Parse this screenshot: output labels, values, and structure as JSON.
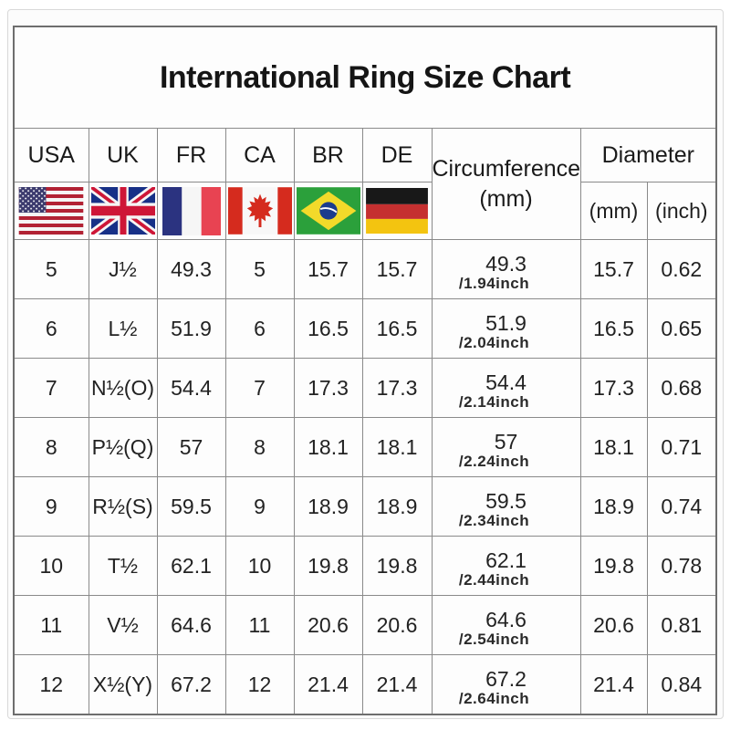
{
  "title": "International Ring Size Chart",
  "colors": {
    "page_background": "#fcfcfc",
    "grid_line": "#8a8a8a",
    "outer_border": "#6e6e6e",
    "text": "#1f1f1f"
  },
  "table": {
    "columns": [
      {
        "code": "USA",
        "flag_icon": "usa-flag-icon"
      },
      {
        "code": "UK",
        "flag_icon": "uk-flag-icon"
      },
      {
        "code": "FR",
        "flag_icon": "france-flag-icon"
      },
      {
        "code": "CA",
        "flag_icon": "canada-flag-icon"
      },
      {
        "code": "BR",
        "flag_icon": "brazil-flag-icon"
      },
      {
        "code": "DE",
        "flag_icon": "germany-flag-icon"
      }
    ],
    "circumference": {
      "label": "Circumference",
      "unit": "(mm)"
    },
    "diameter": {
      "label": "Diameter",
      "mm_label": "(mm)",
      "inch_label": "(inch)"
    },
    "rows": [
      {
        "usa": "5",
        "uk": "J½",
        "fr": "49.3",
        "ca": "5",
        "br": "15.7",
        "de": "15.7",
        "circumference_mm": "49.3",
        "circumference_inch": "/1.94inch",
        "diameter_mm": "15.7",
        "diameter_inch": "0.62"
      },
      {
        "usa": "6",
        "uk": "L½",
        "fr": "51.9",
        "ca": "6",
        "br": "16.5",
        "de": "16.5",
        "circumference_mm": "51.9",
        "circumference_inch": "/2.04inch",
        "diameter_mm": "16.5",
        "diameter_inch": "0.65"
      },
      {
        "usa": "7",
        "uk": "N½(O)",
        "fr": "54.4",
        "ca": "7",
        "br": "17.3",
        "de": "17.3",
        "circumference_mm": "54.4",
        "circumference_inch": "/2.14inch",
        "diameter_mm": "17.3",
        "diameter_inch": "0.68"
      },
      {
        "usa": "8",
        "uk": "P½(Q)",
        "fr": "57",
        "ca": "8",
        "br": "18.1",
        "de": "18.1",
        "circumference_mm": "57",
        "circumference_inch": "/2.24inch",
        "diameter_mm": "18.1",
        "diameter_inch": "0.71"
      },
      {
        "usa": "9",
        "uk": "R½(S)",
        "fr": "59.5",
        "ca": "9",
        "br": "18.9",
        "de": "18.9",
        "circumference_mm": "59.5",
        "circumference_inch": "/2.34inch",
        "diameter_mm": "18.9",
        "diameter_inch": "0.74"
      },
      {
        "usa": "10",
        "uk": "T½",
        "fr": "62.1",
        "ca": "10",
        "br": "19.8",
        "de": "19.8",
        "circumference_mm": "62.1",
        "circumference_inch": "/2.44inch",
        "diameter_mm": "19.8",
        "diameter_inch": "0.78"
      },
      {
        "usa": "11",
        "uk": "V½",
        "fr": "64.6",
        "ca": "11",
        "br": "20.6",
        "de": "20.6",
        "circumference_mm": "64.6",
        "circumference_inch": "/2.54inch",
        "diameter_mm": "20.6",
        "diameter_inch": "0.81"
      },
      {
        "usa": "12",
        "uk": "X½(Y)",
        "fr": "67.2",
        "ca": "12",
        "br": "21.4",
        "de": "21.4",
        "circumference_mm": "67.2",
        "circumference_inch": "/2.64inch",
        "diameter_mm": "21.4",
        "diameter_inch": "0.84"
      }
    ]
  },
  "chart_data": {
    "type": "table",
    "title": "International Ring Size Chart",
    "columns": [
      "USA",
      "UK",
      "FR",
      "CA",
      "BR",
      "DE",
      "Circumference (mm)",
      "Diameter (mm)",
      "Diameter (inch)"
    ],
    "rows": [
      [
        "5",
        "J½",
        "49.3",
        "5",
        "15.7",
        "15.7",
        "49.3 /1.94inch",
        "15.7",
        "0.62"
      ],
      [
        "6",
        "L½",
        "51.9",
        "6",
        "16.5",
        "16.5",
        "51.9 /2.04inch",
        "16.5",
        "0.65"
      ],
      [
        "7",
        "N½(O)",
        "54.4",
        "7",
        "17.3",
        "17.3",
        "54.4 /2.14inch",
        "17.3",
        "0.68"
      ],
      [
        "8",
        "P½(Q)",
        "57",
        "8",
        "18.1",
        "18.1",
        "57 /2.24inch",
        "18.1",
        "0.71"
      ],
      [
        "9",
        "R½(S)",
        "59.5",
        "9",
        "18.9",
        "18.9",
        "59.5 /2.34inch",
        "18.9",
        "0.74"
      ],
      [
        "10",
        "T½",
        "62.1",
        "10",
        "19.8",
        "19.8",
        "62.1 /2.44inch",
        "19.8",
        "0.78"
      ],
      [
        "11",
        "V½",
        "64.6",
        "11",
        "20.6",
        "20.6",
        "64.6 /2.54inch",
        "20.6",
        "0.81"
      ],
      [
        "12",
        "X½(Y)",
        "67.2",
        "12",
        "21.4",
        "21.4",
        "67.2 /2.64inch",
        "21.4",
        "0.84"
      ]
    ]
  }
}
